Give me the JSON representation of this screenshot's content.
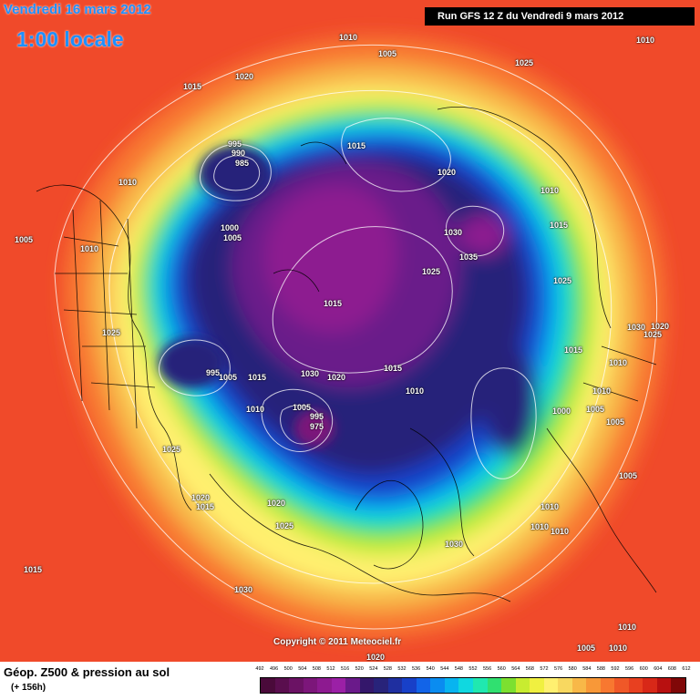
{
  "header": {
    "date": "Vendredi 16 mars 2012",
    "hour": "1:00 locale",
    "run": "Run GFS 12 Z du Vendredi 9 mars 2012"
  },
  "footer": {
    "product": "Géop. Z500 & pression au sol",
    "lead_time": "(+ 156h)",
    "copyright": "Copyright © 2011 Meteociel.fr"
  },
  "legend": {
    "ticks": [
      "492",
      "496",
      "500",
      "504",
      "508",
      "512",
      "516",
      "520",
      "524",
      "528",
      "532",
      "536",
      "540",
      "544",
      "548",
      "552",
      "556",
      "560",
      "564",
      "568",
      "572",
      "576",
      "580",
      "584",
      "588",
      "592",
      "596",
      "600",
      "604",
      "608",
      "612"
    ],
    "colors": [
      "#4a0a3a",
      "#5a0e4e",
      "#6b1264",
      "#7c167a",
      "#8d1a90",
      "#9b20a6",
      "#6a1a8a",
      "#34176b",
      "#28237a",
      "#1f2fa0",
      "#1840c8",
      "#1264e8",
      "#0a8cf0",
      "#08b4f0",
      "#10d8e0",
      "#20e8b0",
      "#30e070",
      "#7ce030",
      "#c8ec30",
      "#f0f040",
      "#fff070",
      "#f8d860",
      "#f8b848",
      "#f89838",
      "#f87830",
      "#f05828",
      "#e84020",
      "#d82818",
      "#b81010",
      "#800808"
    ]
  },
  "isobars": [
    {
      "text": "1010"
    },
    {
      "text": "1005"
    },
    {
      "text": "1025"
    },
    {
      "text": "1010"
    },
    {
      "text": "1015"
    },
    {
      "text": "1020"
    },
    {
      "text": "1010"
    },
    {
      "text": "995"
    },
    {
      "text": "990"
    },
    {
      "text": "985"
    },
    {
      "text": "1015"
    },
    {
      "text": "1020"
    },
    {
      "text": "1010"
    },
    {
      "text": "1005"
    },
    {
      "text": "1010"
    },
    {
      "text": "1000"
    },
    {
      "text": "1005"
    },
    {
      "text": "1030"
    },
    {
      "text": "1035"
    },
    {
      "text": "1015"
    },
    {
      "text": "1025"
    },
    {
      "text": "1025"
    },
    {
      "text": "1015"
    },
    {
      "text": "1025"
    },
    {
      "text": "1030"
    },
    {
      "text": "1020"
    },
    {
      "text": "1025"
    },
    {
      "text": "995"
    },
    {
      "text": "1005"
    },
    {
      "text": "1015"
    },
    {
      "text": "1030"
    },
    {
      "text": "1020"
    },
    {
      "text": "1015"
    },
    {
      "text": "1010"
    },
    {
      "text": "1015"
    },
    {
      "text": "1010"
    },
    {
      "text": "1010"
    },
    {
      "text": "1005"
    },
    {
      "text": "1005"
    },
    {
      "text": "1000"
    },
    {
      "text": "1005"
    },
    {
      "text": "1010"
    },
    {
      "text": "995"
    },
    {
      "text": "975"
    },
    {
      "text": "1025"
    },
    {
      "text": "1005"
    },
    {
      "text": "1020"
    },
    {
      "text": "1015"
    },
    {
      "text": "1020"
    },
    {
      "text": "1025"
    },
    {
      "text": "1010"
    },
    {
      "text": "1010"
    },
    {
      "text": "1010"
    },
    {
      "text": "1030"
    },
    {
      "text": "1015"
    },
    {
      "text": "1030"
    },
    {
      "text": "1010"
    },
    {
      "text": "1005"
    },
    {
      "text": "1010"
    },
    {
      "text": "1020"
    }
  ]
}
